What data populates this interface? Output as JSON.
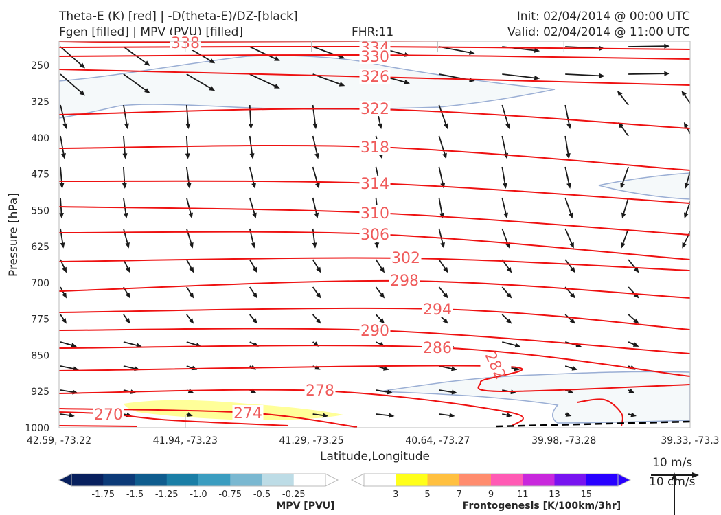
{
  "header": {
    "title_left_1": "Theta-E (K) [red] | -D(theta-E)/DZ-[black]",
    "title_left_2": "Fgen [filled] | MPV (PVU) [filled]",
    "fhr": "FHR:11",
    "init": "Init: 02/04/2014 @ 00:00 UTC",
    "valid": "Valid: 02/04/2014 @ 11:00 UTC"
  },
  "chart_data": {
    "type": "cross-section",
    "xlabel": "Latitude,Longitude",
    "ylabel": "Pressure [hPa]",
    "ylim": [
      1000,
      200
    ],
    "x_ticks": [
      "42.59, -73.22",
      "41.94, -73.23",
      "41.29, -73.25",
      "40.64, -73.27",
      "39.98, -73.28",
      "39.33, -73.3"
    ],
    "y_ticks": [
      250,
      325,
      400,
      475,
      550,
      625,
      700,
      775,
      850,
      925,
      1000
    ],
    "theta_e_contours": [
      {
        "level": 338,
        "label": "338"
      },
      {
        "level": 334,
        "label": "334"
      },
      {
        "level": 330,
        "label": "330"
      },
      {
        "level": 326,
        "label": "326"
      },
      {
        "level": 322,
        "label": "322"
      },
      {
        "level": 318,
        "label": "318"
      },
      {
        "level": 314,
        "label": "314"
      },
      {
        "level": 310,
        "label": "310"
      },
      {
        "level": 306,
        "label": "306"
      },
      {
        "level": 302,
        "label": "302"
      },
      {
        "level": 298,
        "label": "298"
      },
      {
        "level": 294,
        "label": "294"
      },
      {
        "level": 290,
        "label": "290"
      },
      {
        "level": 286,
        "label": "286"
      },
      {
        "level": 282,
        "label": "282"
      },
      {
        "level": 278,
        "label": "278"
      },
      {
        "level": 274,
        "label": "274"
      },
      {
        "level": 270,
        "label": "270"
      }
    ],
    "colors": {
      "theta_e": "#ee1111",
      "vectors": "#1a1a1a",
      "mpv_region": "#f5f9fa",
      "mpv_edge": "#9aaed4",
      "fgen_region": "#ffff99"
    }
  },
  "colorbars": {
    "mpv": {
      "title": "MPV [PVU]",
      "colors": [
        "#08205e",
        "#0c3a78",
        "#0f5c8e",
        "#1a7ea6",
        "#3b9dc0",
        "#7ab8d1",
        "#bddce6",
        "#ffffff"
      ],
      "labels": [
        "-1.75",
        "-1.5",
        "-1.25",
        "-1.0",
        "-0.75",
        "-0.5",
        "-0.25"
      ]
    },
    "fgen": {
      "title": "Frontogenesis [K/100km/3hr]",
      "colors": [
        "#ffffff",
        "#ffff1a",
        "#ffc040",
        "#ff8c6e",
        "#ff5ab4",
        "#c828dc",
        "#7814f0",
        "#2800ff"
      ],
      "labels": [
        "3",
        "5",
        "7",
        "9",
        "11",
        "13",
        "15"
      ]
    }
  },
  "scale_labels": {
    "wind": "10 m/s",
    "vertical": "10 cm/s"
  }
}
